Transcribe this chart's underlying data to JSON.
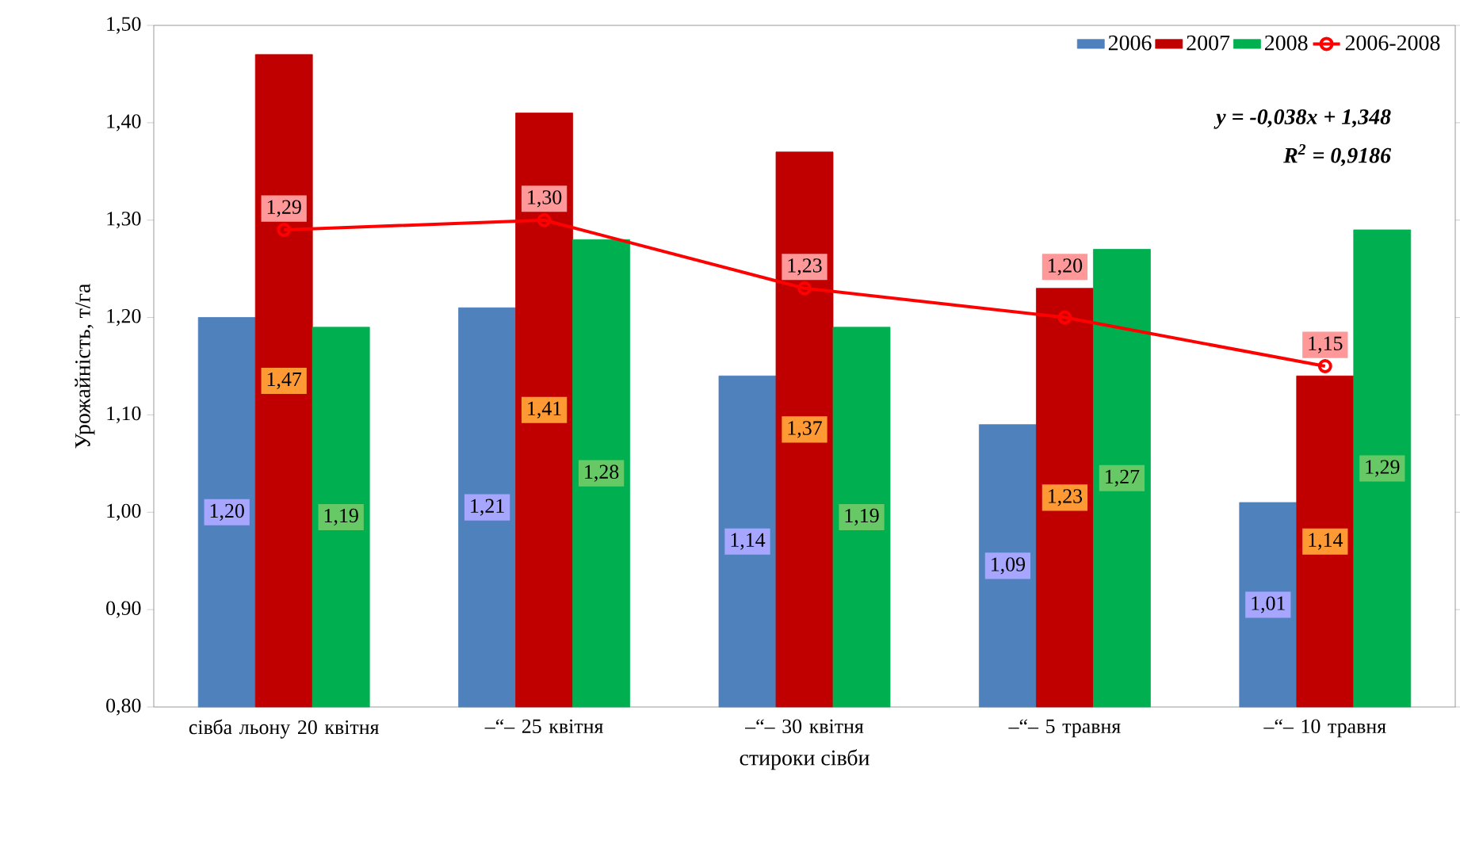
{
  "chart_data": {
    "type": "bar",
    "categories": [
      "сівба льону 20 квітня",
      "–“– 25 квітня",
      "–“– 30 квітня",
      "–“– 5 травня",
      "–“– 10 травня"
    ],
    "xlabel": "стироки сівби",
    "ylabel": "Урожайність, т/га",
    "ylim": [
      0.8,
      1.5
    ],
    "yticks": [
      {
        "value": 0.8,
        "label": "0,80"
      },
      {
        "value": 0.9,
        "label": "0,90"
      },
      {
        "value": 1.0,
        "label": "1,00"
      },
      {
        "value": 1.1,
        "label": "1,10"
      },
      {
        "value": 1.2,
        "label": "1,20"
      },
      {
        "value": 1.3,
        "label": "1,30"
      },
      {
        "value": 1.4,
        "label": "1,40"
      },
      {
        "value": 1.5,
        "label": "1,50"
      }
    ],
    "series": [
      {
        "name": "2006",
        "color": "#4f81bd",
        "values": [
          1.2,
          1.21,
          1.14,
          1.09,
          1.01
        ],
        "value_labels": [
          "1,20",
          "1,21",
          "1,14",
          "1,09",
          "1,01"
        ]
      },
      {
        "name": "2007",
        "color": "#c00000",
        "values": [
          1.47,
          1.41,
          1.37,
          1.23,
          1.14
        ],
        "value_labels": [
          "1,47",
          "1,41",
          "1,37",
          "1,23",
          "1,14"
        ]
      },
      {
        "name": "2008",
        "color": "#00b050",
        "values": [
          1.19,
          1.28,
          1.19,
          1.27,
          1.29
        ],
        "value_labels": [
          "1,19",
          "1,28",
          "1,19",
          "1,27",
          "1,29"
        ]
      },
      {
        "name": "2006-2008",
        "type": "line",
        "color": "#ff0000",
        "marker": "circle",
        "values": [
          1.29,
          1.3,
          1.23,
          1.2,
          1.15
        ],
        "value_labels": [
          "1,29",
          "1,30",
          "1,23",
          "1,20",
          "1,15"
        ]
      }
    ],
    "annotations": [
      "y = -0,038x + 1,348",
      "R$^{2}$ = 0,9186"
    ],
    "legend": "top right"
  }
}
